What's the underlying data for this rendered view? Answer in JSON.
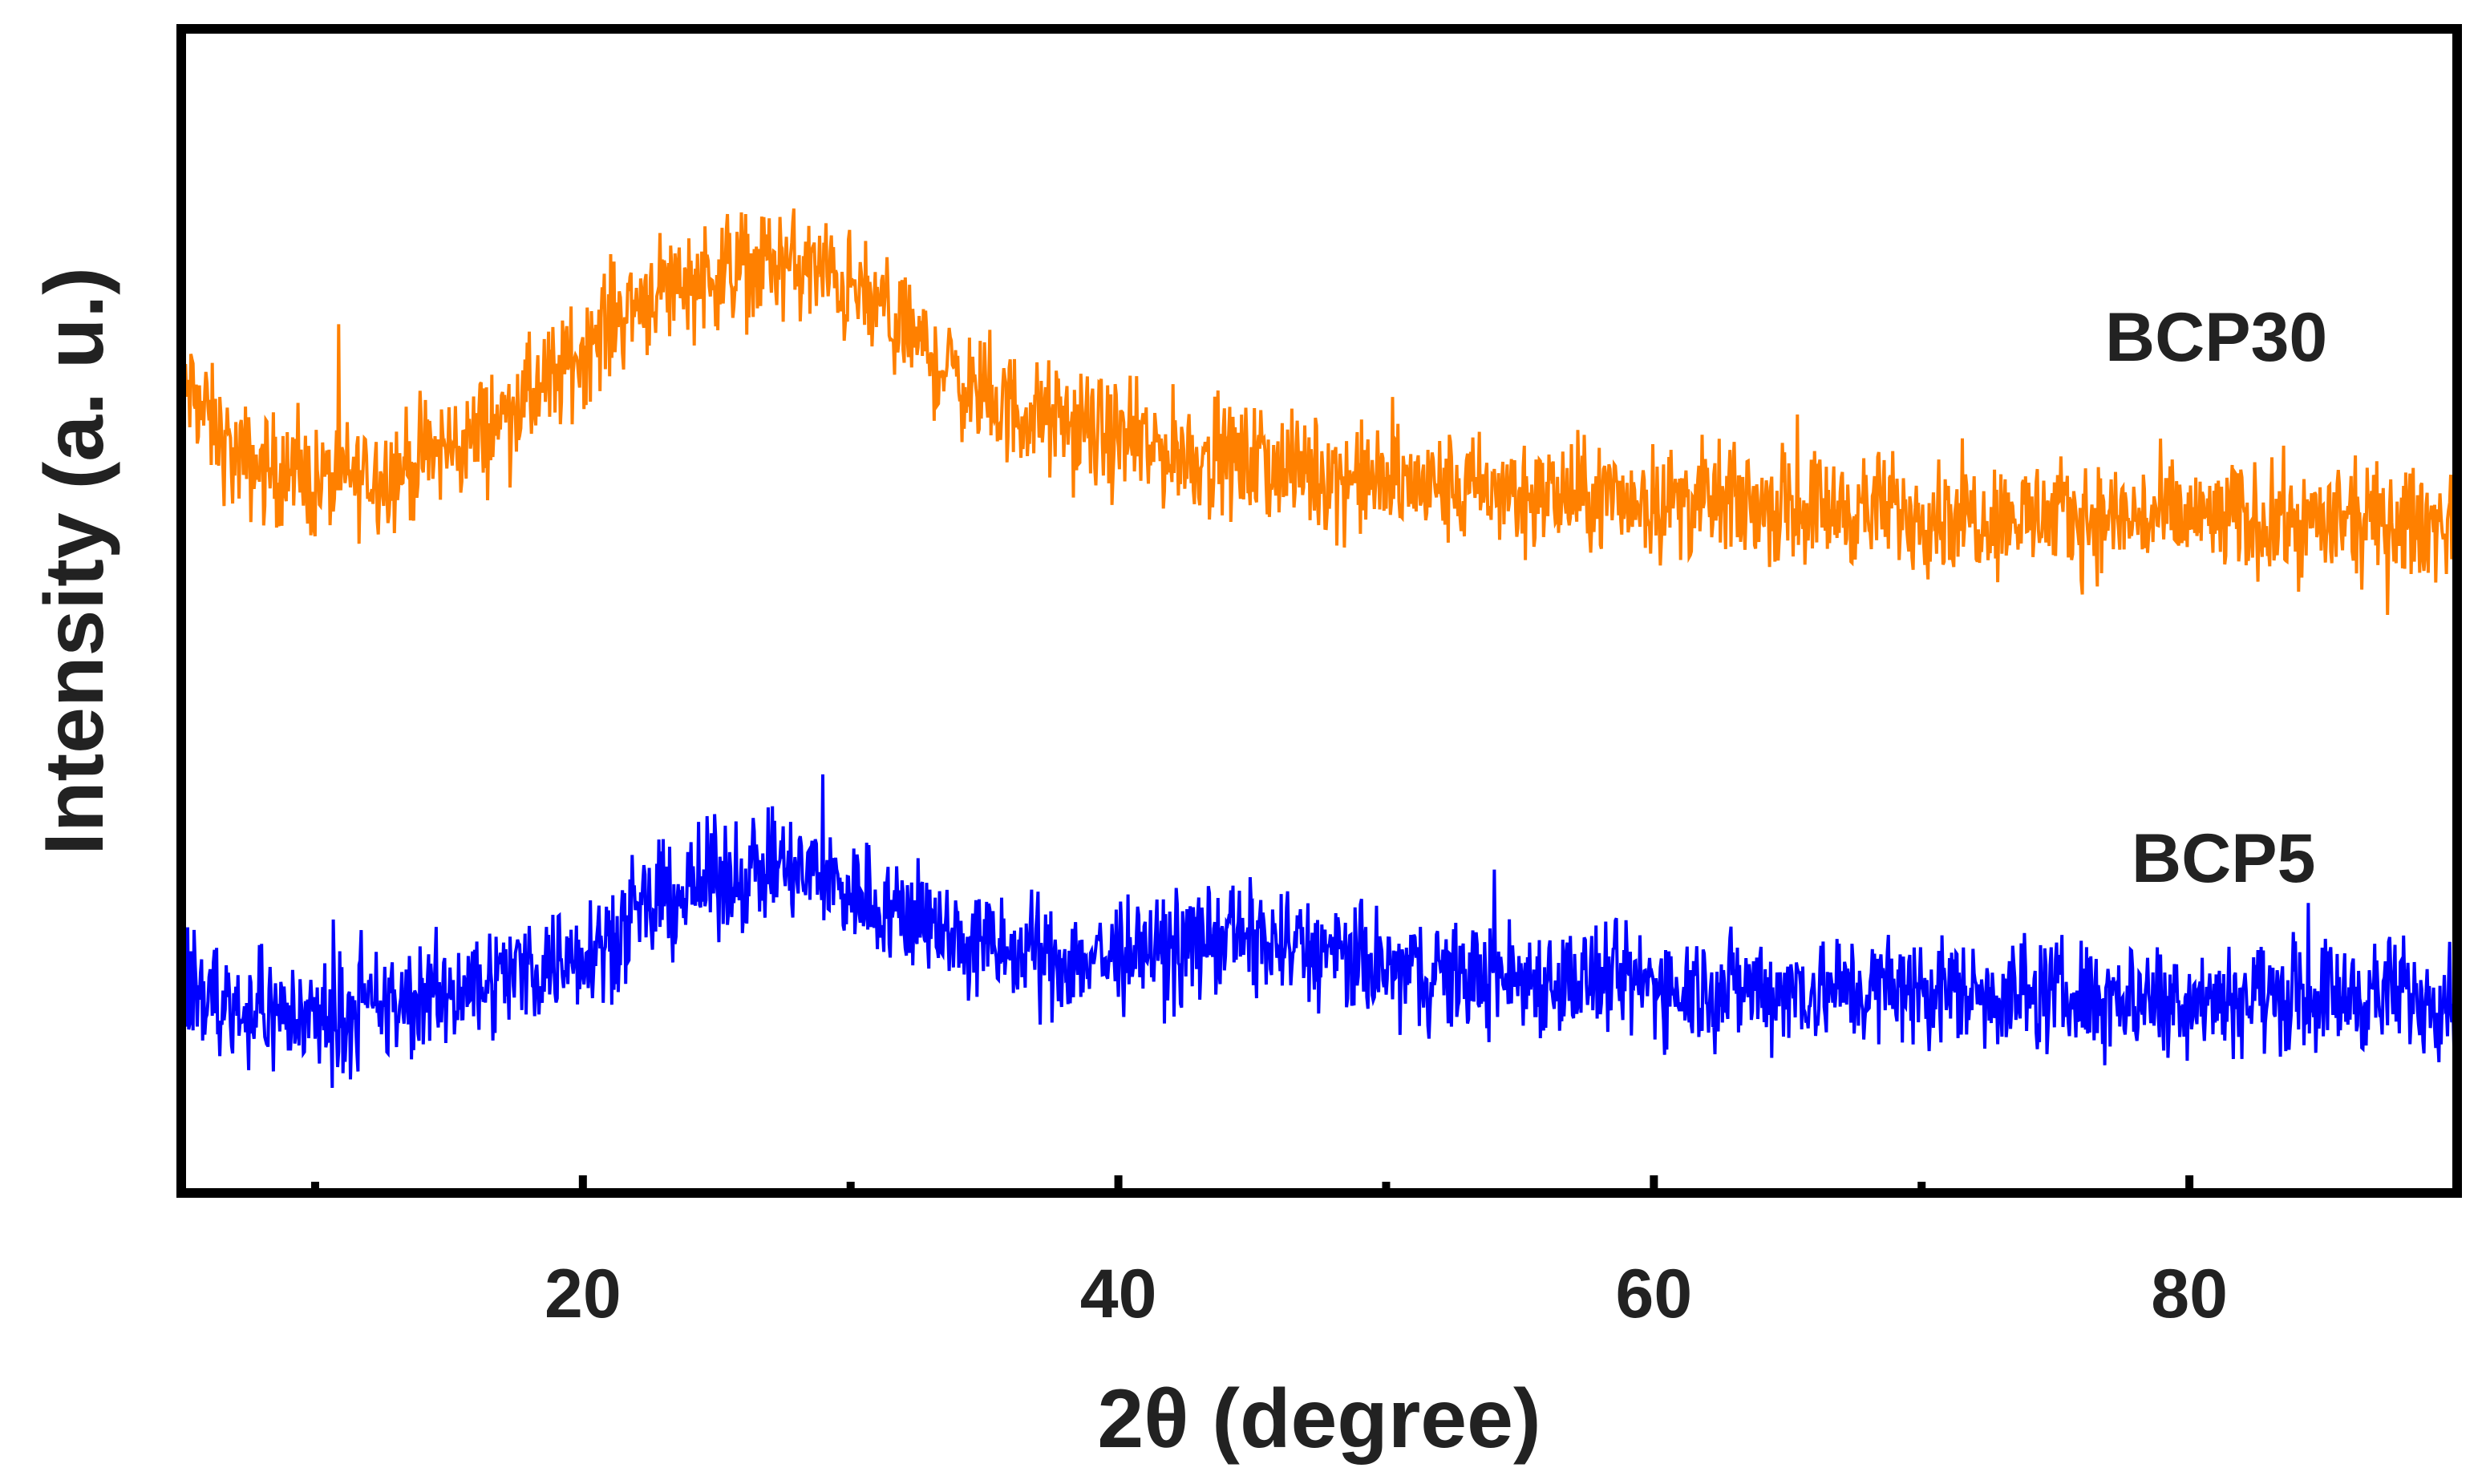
{
  "chart_data": {
    "type": "line",
    "title": "",
    "xlabel": "2θ (degree)",
    "ylabel": "Intensity (a. u.)",
    "xlim": [
      5,
      90
    ],
    "x_ticks": [
      20,
      40,
      60,
      80
    ],
    "x_minor_ticks": [
      10,
      30,
      50,
      70,
      90
    ],
    "y_ticks": [],
    "ylim": [
      0,
      100
    ],
    "grid": false,
    "legend": "inline labels at right",
    "colors": {
      "BCP30": "#ff8000",
      "BCP5": "#0000ff",
      "frame": "#000000"
    },
    "series": [
      {
        "name": "BCP30",
        "x": [
          5,
          7,
          10,
          13,
          16,
          19,
          21,
          23,
          25,
          27,
          29,
          31,
          33,
          35,
          38,
          41,
          44,
          47,
          50,
          55,
          60,
          65,
          70,
          75,
          80,
          85,
          90
        ],
        "y": [
          70,
          63,
          61,
          62,
          65,
          70,
          75,
          78,
          79,
          80,
          79,
          76,
          72,
          68,
          66,
          64,
          63,
          62,
          61,
          60,
          59.5,
          59,
          58.5,
          58,
          58,
          57.5,
          57.5
        ],
        "noise_amplitude": 4
      },
      {
        "name": "BCP5",
        "x": [
          5,
          7,
          10,
          13,
          16,
          19,
          21,
          23,
          25,
          27,
          29,
          31,
          33,
          35,
          38,
          41,
          44,
          47,
          50,
          55,
          60,
          65,
          70,
          75,
          80,
          85,
          90
        ],
        "y": [
          18,
          16,
          15,
          16,
          18,
          20,
          22,
          25,
          27,
          28,
          27,
          25,
          23,
          21,
          20,
          20.5,
          22,
          21,
          19,
          18.5,
          18,
          17.5,
          17.5,
          17,
          17,
          17,
          17
        ],
        "noise_amplitude": 4
      }
    ],
    "annotations": [
      {
        "text": "BCP30",
        "series": "BCP30"
      },
      {
        "text": "BCP5",
        "series": "BCP5"
      }
    ]
  }
}
